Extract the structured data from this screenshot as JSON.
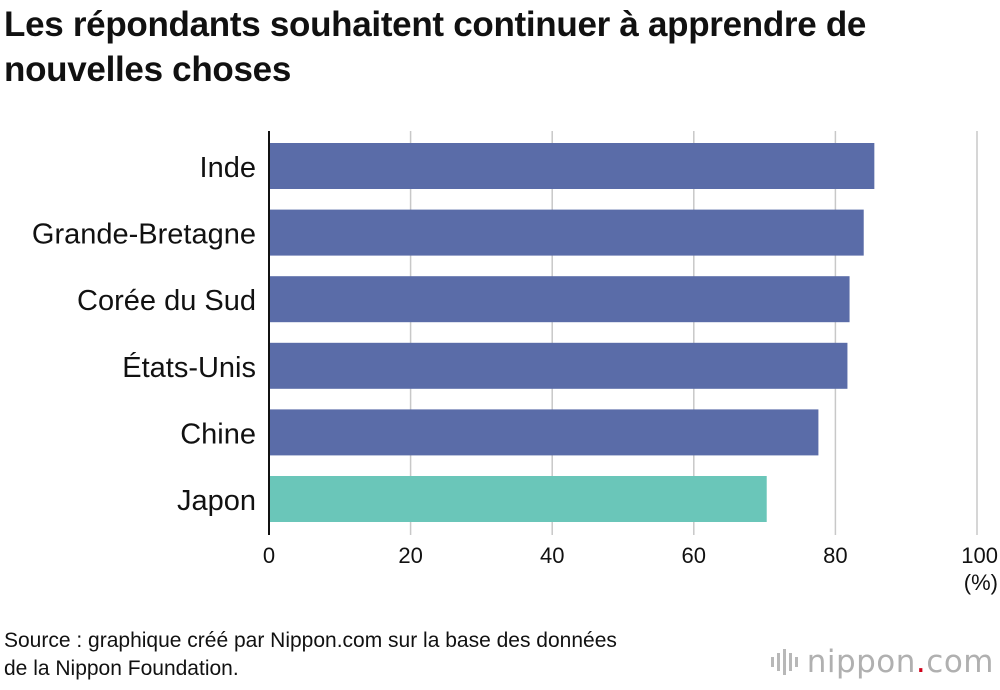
{
  "title": "Les répondants souhaitent continuer à apprendre de nouvelles choses",
  "chart_data": {
    "type": "bar",
    "orientation": "horizontal",
    "categories": [
      "Inde",
      "Grande-Bretagne",
      "Corée du Sud",
      "États-Unis",
      "Chine",
      "Japon"
    ],
    "values": [
      85.5,
      84.0,
      82.0,
      81.7,
      77.6,
      70.3
    ],
    "bar_colors": [
      "#5a6ca8",
      "#5a6ca8",
      "#5a6ca8",
      "#5a6ca8",
      "#5a6ca8",
      "#6ac6b9"
    ],
    "xlim": [
      0,
      100
    ],
    "xticks": [
      0,
      20,
      40,
      60,
      80,
      100
    ],
    "xtick_labels": [
      "0",
      "20",
      "40",
      "60",
      "80",
      "100"
    ],
    "unit_label": "(%)",
    "grid": true
  },
  "source_lines": [
    "Source : graphique créé par Nippon.com sur la base des données",
    "de la Nippon Foundation."
  ],
  "logo": {
    "name": "nippon",
    "dot": ".",
    "suffix": "com",
    "icon": "nippon-logo-bars-icon",
    "dot_color": "#d0021b"
  }
}
